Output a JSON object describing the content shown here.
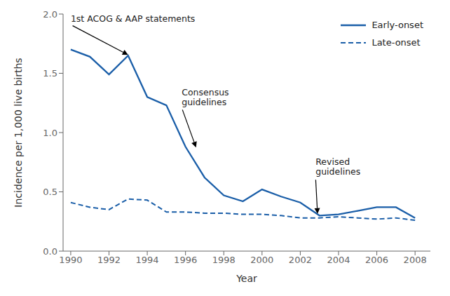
{
  "chart_data": {
    "type": "line",
    "xlabel": "Year",
    "ylabel": "Incidence per 1,000 live births",
    "x": [
      1990,
      1991,
      1992,
      1993,
      1994,
      1995,
      1996,
      1997,
      1998,
      1999,
      2000,
      2001,
      2002,
      2003,
      2004,
      2005,
      2006,
      2007,
      2008
    ],
    "series": [
      {
        "name": "Early-onset",
        "color": "#1a5ea8",
        "line_style": "solid",
        "values": [
          1.7,
          1.64,
          1.49,
          1.65,
          1.3,
          1.23,
          0.88,
          0.62,
          0.47,
          0.42,
          0.52,
          0.46,
          0.41,
          0.3,
          0.31,
          0.34,
          0.37,
          0.37,
          0.28
        ]
      },
      {
        "name": "Late-onset",
        "color": "#1a5ea8",
        "line_style": "dashed",
        "values": [
          0.41,
          0.37,
          0.35,
          0.44,
          0.43,
          0.33,
          0.33,
          0.32,
          0.32,
          0.31,
          0.31,
          0.3,
          0.28,
          0.28,
          0.29,
          0.28,
          0.27,
          0.28,
          0.26
        ]
      }
    ],
    "xlim": [
      1989.6,
      2008.8
    ],
    "xticks": [
      1990,
      1992,
      1994,
      1996,
      1998,
      2000,
      2002,
      2004,
      2006,
      2008
    ],
    "ylim": [
      0.0,
      2.0
    ],
    "yticks": [
      {
        "value": 0.0,
        "label": "0.0"
      },
      0.5,
      {
        "value": 1.0,
        "label": "1.0"
      },
      1.5,
      {
        "value": 2.0,
        "label": "2.0"
      }
    ],
    "annotations": [
      {
        "text": "1st ACOG & AAP statements",
        "xy": [
          1993.0,
          1.655
        ],
        "xytext": [
          1990.0,
          1.91
        ]
      },
      {
        "text": "Consensus\nguidelines",
        "xy": [
          1996.55,
          0.875
        ],
        "xytext": [
          1995.8,
          1.21
        ]
      },
      {
        "text": "Revised\nguidelines",
        "xy": [
          2002.9,
          0.315
        ],
        "xytext": [
          2002.8,
          0.62
        ]
      }
    ],
    "legend": "upper right",
    "grid": false
  }
}
